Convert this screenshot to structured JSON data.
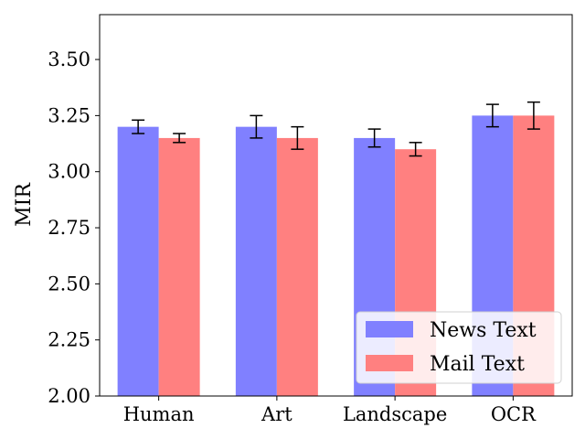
{
  "chart_data": {
    "type": "bar",
    "categories": [
      "Human",
      "Art",
      "Landscape",
      "OCR"
    ],
    "series": [
      {
        "name": "News Text",
        "color": "#8080ff",
        "values": [
          3.2,
          3.2,
          3.15,
          3.25
        ],
        "errors": [
          0.03,
          0.05,
          0.04,
          0.05
        ]
      },
      {
        "name": "Mail Text",
        "color": "#ff8080",
        "values": [
          3.15,
          3.15,
          3.1,
          3.25
        ],
        "errors": [
          0.02,
          0.05,
          0.03,
          0.06
        ]
      }
    ],
    "ylabel": "MIR",
    "ylim": [
      2.0,
      3.7
    ],
    "yticks": [
      "2.00",
      "2.25",
      "2.50",
      "2.75",
      "3.00",
      "3.25",
      "3.50"
    ],
    "grid": false,
    "legend_position": "lower-right"
  }
}
